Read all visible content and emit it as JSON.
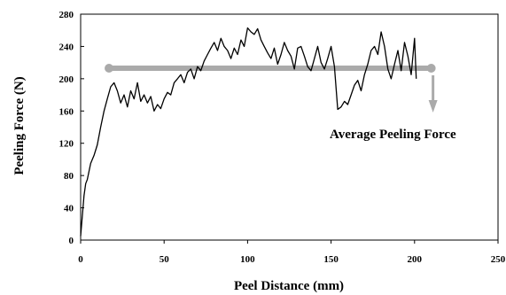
{
  "chart_data": {
    "type": "line",
    "title": "",
    "xlabel": "Peel Distance (mm)",
    "ylabel": "Peeling Force (N)",
    "xlim": [
      0,
      250
    ],
    "ylim": [
      0,
      280
    ],
    "xticks": [
      0,
      50,
      100,
      150,
      200,
      250
    ],
    "yticks": [
      0,
      40,
      80,
      120,
      160,
      200,
      240,
      280
    ],
    "grid": false,
    "series": [
      {
        "color": "#000000",
        "x": [
          0,
          1,
          2,
          3,
          4,
          5,
          6,
          8,
          10,
          12,
          14,
          16,
          18,
          20,
          22,
          24,
          26,
          28,
          30,
          32,
          34,
          36,
          38,
          40,
          42,
          44,
          46,
          48,
          50,
          52,
          54,
          56,
          58,
          60,
          62,
          64,
          66,
          68,
          70,
          72,
          74,
          76,
          78,
          80,
          82,
          84,
          86,
          88,
          90,
          92,
          94,
          96,
          98,
          100,
          102,
          104,
          106,
          108,
          110,
          112,
          114,
          116,
          118,
          120,
          122,
          124,
          126,
          128,
          130,
          132,
          134,
          136,
          138,
          140,
          142,
          144,
          146,
          148,
          150,
          152,
          154,
          156,
          158,
          160,
          162,
          164,
          166,
          168,
          170,
          172,
          174,
          176,
          178,
          180,
          182,
          184,
          186,
          188,
          190,
          192,
          194,
          196,
          198,
          200,
          201
        ],
        "values": [
          5,
          30,
          55,
          70,
          75,
          85,
          95,
          105,
          118,
          140,
          160,
          175,
          190,
          195,
          185,
          170,
          180,
          165,
          185,
          175,
          195,
          172,
          180,
          170,
          178,
          160,
          168,
          163,
          175,
          183,
          180,
          195,
          200,
          205,
          195,
          208,
          212,
          200,
          215,
          210,
          222,
          230,
          238,
          245,
          235,
          250,
          240,
          235,
          225,
          238,
          230,
          248,
          240,
          263,
          258,
          255,
          262,
          248,
          240,
          232,
          225,
          238,
          218,
          230,
          245,
          235,
          228,
          212,
          238,
          240,
          228,
          215,
          210,
          225,
          240,
          220,
          212,
          225,
          240,
          215,
          162,
          165,
          172,
          168,
          180,
          192,
          198,
          185,
          205,
          218,
          235,
          240,
          230,
          258,
          240,
          212,
          200,
          218,
          235,
          210,
          245,
          228,
          205,
          250,
          200
        ]
      }
    ],
    "average": {
      "label": "Average Peeling Force",
      "value": 213,
      "x_start": 17,
      "x_end": 210,
      "color": "#aaaaaa"
    }
  }
}
